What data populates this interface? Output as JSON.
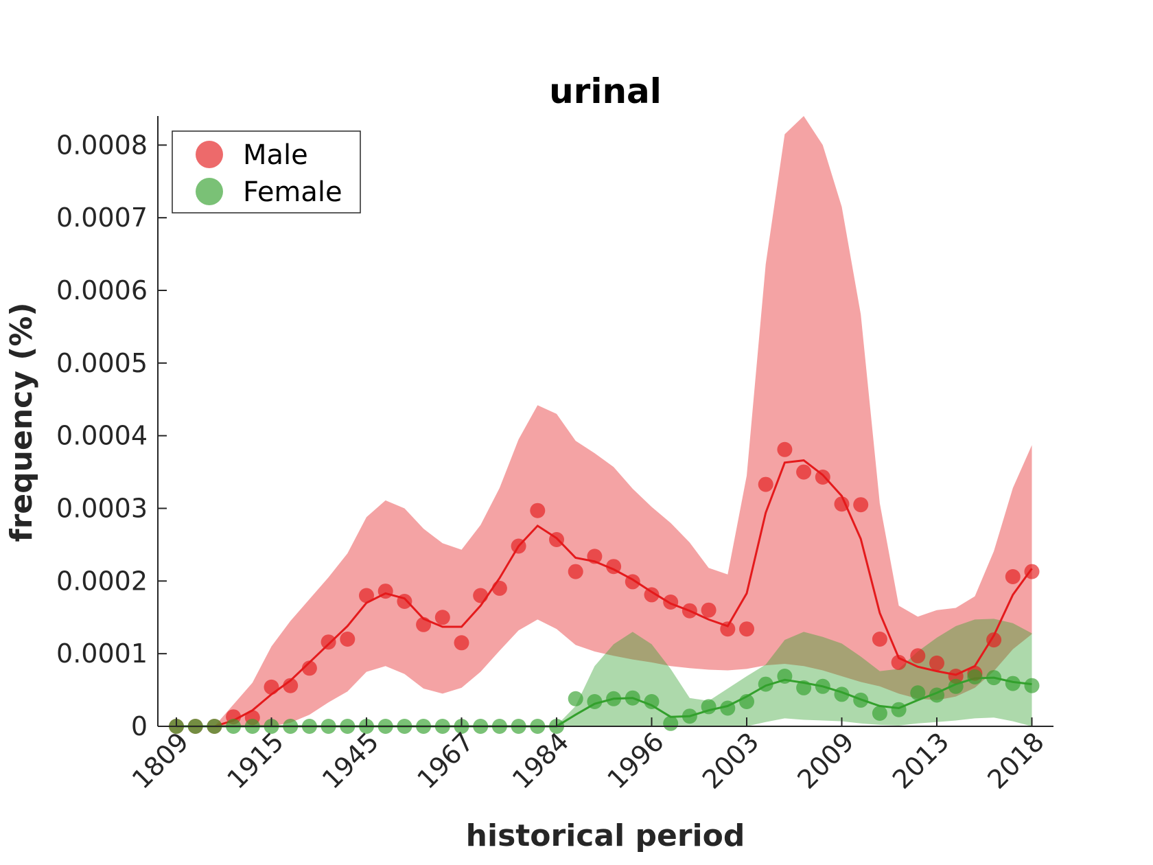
{
  "chart_data": {
    "type": "line",
    "title": "urinal",
    "xlabel": "historical period",
    "ylabel": "frequency (%)",
    "ylim": [
      0,
      0.00084
    ],
    "yticks": [
      "0",
      "0.0001",
      "0.0002",
      "0.0003",
      "0.0004",
      "0.0005",
      "0.0006",
      "0.0007",
      "0.0008"
    ],
    "x_tick_labels": [
      "1809",
      "1915",
      "1945",
      "1967",
      "1984",
      "1996",
      "2003",
      "2009",
      "2013",
      "2018"
    ],
    "x_tick_indices": [
      0,
      5,
      10,
      15,
      20,
      25,
      30,
      35,
      40,
      45
    ],
    "legend_position": "top-left",
    "grid": false,
    "series": [
      {
        "name": "Male",
        "color": "#e41a1c",
        "points": [
          0,
          0,
          0,
          1.3e-05,
          1.2e-05,
          5.4e-05,
          5.6e-05,
          8e-05,
          0.000116,
          0.00012,
          0.00018,
          0.000186,
          0.000172,
          0.00014,
          0.00015,
          0.000115,
          0.00018,
          0.00019,
          0.000248,
          0.000297,
          0.000257,
          0.000213,
          0.000234,
          0.00022,
          0.000199,
          0.000181,
          0.000171,
          0.000159,
          0.00016,
          0.000134,
          0.000134,
          0.000333,
          0.000381,
          0.00035,
          0.000343,
          0.000306,
          0.000305,
          0.00012,
          8.8e-05,
          9.7e-05,
          8.7e-05,
          6.9e-05,
          7.3e-05,
          0.000119,
          0.000206,
          0.000213
        ],
        "smooth": [
          0,
          0,
          0,
          8e-06,
          2.2e-05,
          4.4e-05,
          6.3e-05,
          8.8e-05,
          0.000113,
          0.000138,
          0.00017,
          0.000183,
          0.000176,
          0.000148,
          0.000137,
          0.000137,
          0.000166,
          0.000204,
          0.000248,
          0.000276,
          0.000259,
          0.000232,
          0.000227,
          0.000216,
          0.000202,
          0.000185,
          0.000169,
          0.000159,
          0.000147,
          0.000138,
          0.000183,
          0.000294,
          0.000363,
          0.000366,
          0.000346,
          0.000317,
          0.000258,
          0.000156,
          9.4e-05,
          8.2e-05,
          7.6e-05,
          7.1e-05,
          8.3e-05,
          0.000125,
          0.000181,
          0.000217
        ],
        "band_upper": [
          0,
          0,
          0,
          3e-05,
          6e-05,
          0.00011,
          0.000145,
          0.000175,
          0.000205,
          0.000238,
          0.000288,
          0.000311,
          0.0003,
          0.000272,
          0.000252,
          0.000243,
          0.000277,
          0.000328,
          0.000395,
          0.000442,
          0.00043,
          0.000393,
          0.000376,
          0.000357,
          0.000327,
          0.000302,
          0.00028,
          0.000253,
          0.000218,
          0.000209,
          0.000345,
          0.000636,
          0.000815,
          0.00084,
          0.0008,
          0.000715,
          0.000567,
          0.000307,
          0.000166,
          0.000151,
          0.00016,
          0.000163,
          0.000179,
          0.000241,
          0.000328,
          0.000387
        ],
        "band_lower": [
          0,
          0,
          0,
          0,
          0,
          0,
          5e-06,
          1.6e-05,
          3.3e-05,
          4.8e-05,
          7.5e-05,
          8.3e-05,
          7.2e-05,
          5.2e-05,
          4.5e-05,
          5.3e-05,
          7.5e-05,
          0.000104,
          0.000132,
          0.000147,
          0.000134,
          0.000112,
          0.000103,
          9.7e-05,
          9.2e-05,
          8.8e-05,
          8.3e-05,
          8e-05,
          7.8e-05,
          7.7e-05,
          7.9e-05,
          8.4e-05,
          8.6e-05,
          8.3e-05,
          7.7e-05,
          6.9e-05,
          6.1e-05,
          5.5e-05,
          4.5e-05,
          3.8e-05,
          3.6e-05,
          4.1e-05,
          5.3e-05,
          7.6e-05,
          0.000106,
          0.000127
        ]
      },
      {
        "name": "Female",
        "color": "#33a02c",
        "points": [
          0,
          0,
          0,
          0,
          0,
          0,
          0,
          0,
          0,
          0,
          0,
          0,
          0,
          0,
          0,
          0,
          0,
          0,
          0,
          0,
          0,
          3.8e-05,
          3.4e-05,
          3.8e-05,
          3.9e-05,
          3.4e-05,
          4e-06,
          1.4e-05,
          2.7e-05,
          2.5e-05,
          3.4e-05,
          5.8e-05,
          6.9e-05,
          5.3e-05,
          5.5e-05,
          4.4e-05,
          3.6e-05,
          1.8e-05,
          2.3e-05,
          4.6e-05,
          4.3e-05,
          5.5e-05,
          6.8e-05,
          6.7e-05,
          5.9e-05,
          5.6e-05
        ],
        "smooth": [
          0,
          0,
          0,
          0,
          0,
          0,
          0,
          0,
          0,
          0,
          0,
          0,
          0,
          0,
          0,
          0,
          0,
          0,
          0,
          0,
          0,
          1.6e-05,
          3.1e-05,
          3.8e-05,
          3.9e-05,
          2.9e-05,
          1.3e-05,
          1.4e-05,
          2.2e-05,
          2.8e-05,
          4.1e-05,
          5.6e-05,
          6.4e-05,
          6e-05,
          5.5e-05,
          4.7e-05,
          3.7e-05,
          2.8e-05,
          2.5e-05,
          3.6e-05,
          4.6e-05,
          5.8e-05,
          6.6e-05,
          6.7e-05,
          6.1e-05,
          5.8e-05
        ],
        "band_upper": [
          0,
          0,
          0,
          0,
          0,
          0,
          0,
          0,
          0,
          0,
          0,
          0,
          0,
          0,
          0,
          0,
          0,
          0,
          0,
          0,
          1e-06,
          2.8e-05,
          8.3e-05,
          0.000113,
          0.00013,
          0.000113,
          7.9e-05,
          3.9e-05,
          3.5e-05,
          5.2e-05,
          6.9e-05,
          8.5e-05,
          0.000119,
          0.00013,
          0.000123,
          0.000114,
          9.6e-05,
          7.6e-05,
          7.9e-05,
          0.000103,
          0.000122,
          0.000138,
          0.000147,
          0.000148,
          0.000142,
          0.000128
        ],
        "band_lower": [
          0,
          0,
          0,
          0,
          0,
          0,
          0,
          0,
          0,
          0,
          0,
          0,
          0,
          0,
          0,
          0,
          0,
          0,
          0,
          0,
          0,
          0,
          0,
          0,
          0,
          0,
          0,
          0,
          0,
          0,
          0,
          6e-06,
          1.1e-05,
          9e-06,
          8e-06,
          7e-06,
          4e-06,
          2e-06,
          1e-06,
          4e-06,
          6e-06,
          8e-06,
          1.1e-05,
          1.2e-05,
          7e-06,
          0
        ]
      }
    ]
  }
}
